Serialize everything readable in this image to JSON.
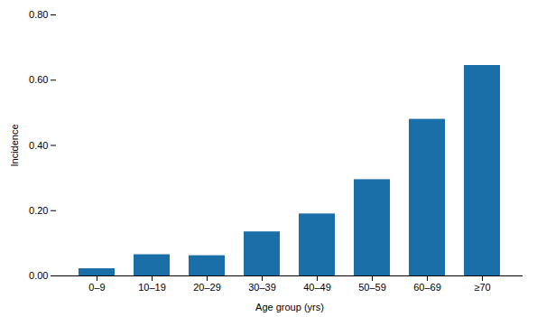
{
  "chart_data": {
    "type": "bar",
    "categories": [
      "0–9",
      "10–19",
      "20–29",
      "30–39",
      "40–49",
      "50–59",
      "60–69",
      "≥70"
    ],
    "values": [
      0.022,
      0.065,
      0.062,
      0.135,
      0.19,
      0.295,
      0.48,
      0.645
    ],
    "color": "#1B6FA8",
    "xlabel": "Age group (yrs)",
    "ylabel": "Incidence",
    "ylim": [
      0,
      0.8
    ],
    "yticks": [
      {
        "value": 0,
        "label": "0.00"
      },
      {
        "value": 0.2,
        "label": "0.20"
      },
      {
        "value": 0.4,
        "label": "0.40"
      },
      {
        "value": 0.6,
        "label": "0.60"
      },
      {
        "value": 0.8,
        "label": "0.80"
      }
    ],
    "grid": false
  }
}
